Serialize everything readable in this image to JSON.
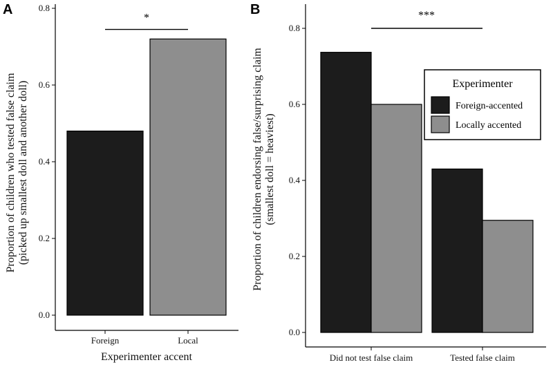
{
  "colors": {
    "foreign": "#1c1c1c",
    "local": "#8e8e8e",
    "axis": "#000000",
    "stroke": "#000000"
  },
  "chart_data": [
    {
      "panel": "A",
      "type": "bar",
      "title": "",
      "xlabel": "Experimenter accent",
      "ylabel_line1": "Proportion of children who tested false claim",
      "ylabel_line2": "(picked up smallest doll and another doll)",
      "ylim": [
        0,
        0.8
      ],
      "yticks": [
        0.0,
        0.2,
        0.4,
        0.6,
        0.8
      ],
      "ytick_labels": [
        "0.0",
        "0.2",
        "0.4",
        "0.6",
        "0.8"
      ],
      "categories": [
        "Foreign",
        "Local"
      ],
      "values": [
        0.48,
        0.72
      ],
      "bar_colors": [
        "foreign",
        "local"
      ],
      "significance": "*"
    },
    {
      "panel": "B",
      "type": "bar",
      "title": "",
      "xlabel": "",
      "ylabel_line1": "Proportion of children endorsing false/surprising claim",
      "ylabel_line2": "(smallest doll = heaviest)",
      "ylim": [
        0,
        0.85
      ],
      "yticks": [
        0.0,
        0.2,
        0.4,
        0.6,
        0.8
      ],
      "ytick_labels": [
        "0.0",
        "0.2",
        "0.4",
        "0.6",
        "0.8"
      ],
      "categories": [
        "Did not test false claim",
        "Tested false claim"
      ],
      "series": [
        {
          "name": "Foreign-accented",
          "color": "foreign",
          "values": [
            0.737,
            0.43
          ]
        },
        {
          "name": "Locally accented",
          "color": "local",
          "values": [
            0.6,
            0.295
          ]
        }
      ],
      "legend": {
        "title": "Experimenter",
        "position": "top-right"
      },
      "significance": "***"
    }
  ]
}
